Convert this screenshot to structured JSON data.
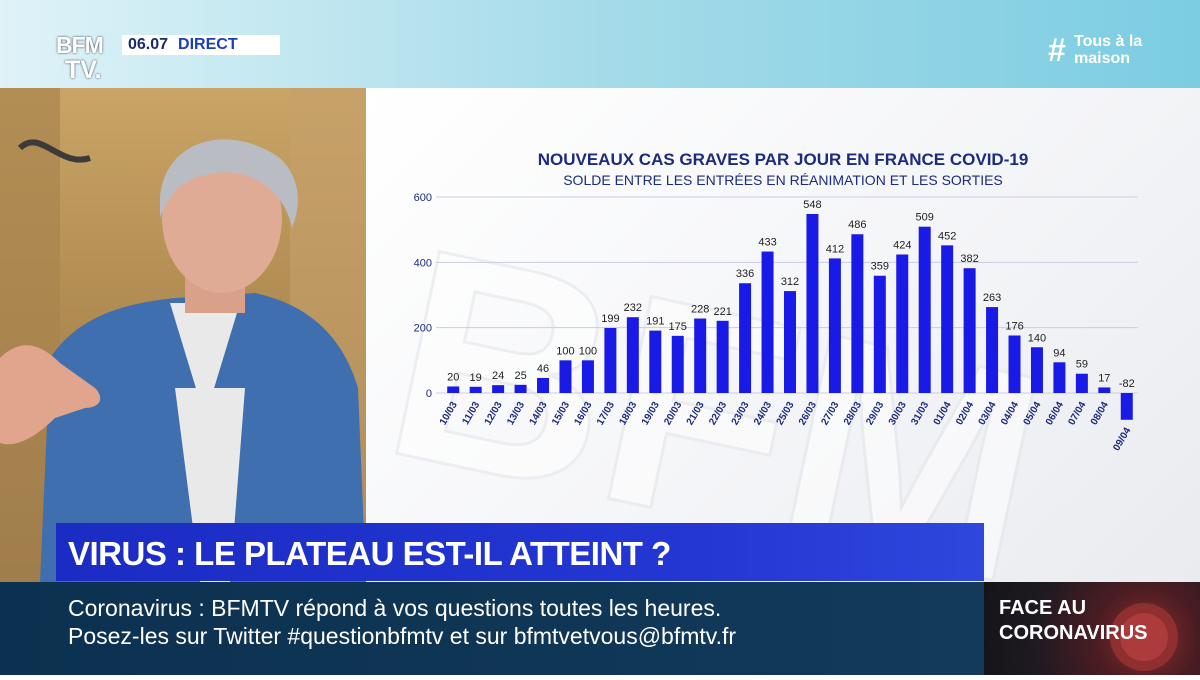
{
  "channel": {
    "logo_line1": "BFM",
    "logo_line2": "TV.",
    "time": "06.07",
    "live": "DIRECT",
    "hashtag_symbol": "#",
    "hashtag_line1": "Tous à la",
    "hashtag_line2": "maison"
  },
  "headline": "VIRUS : LE PLATEAU EST-IL ATTEINT ?",
  "ticker": {
    "label": "Coronavirus :",
    "line1": "BFMTV répond à vos questions toutes les heures.",
    "line2": "Posez-les sur Twitter #questionbfmtv et sur bfmtvetvous@bfmtv.fr"
  },
  "side_panel": {
    "line1": "FACE AU",
    "line2": "CORONAVIRUS"
  },
  "colors": {
    "bar": "#1a1ae6",
    "headline_bg": "#2233cc",
    "ticker_bg": "#0f3556",
    "title": "#1c2a80"
  },
  "chart_data": {
    "type": "bar",
    "title": "NOUVEAUX CAS GRAVES PAR JOUR EN FRANCE COVID-19",
    "subtitle": "SOLDE ENTRE LES ENTRÉES EN RÉANIMATION ET LES SORTIES",
    "categories": [
      "10/03",
      "11/03",
      "12/03",
      "13/03",
      "14/03",
      "15/03",
      "16/03",
      "17/03",
      "18/03",
      "19/03",
      "20/03",
      "21/03",
      "22/03",
      "23/03",
      "24/03",
      "25/03",
      "26/03",
      "27/03",
      "28/03",
      "29/03",
      "30/03",
      "31/03",
      "01/04",
      "02/04",
      "03/04",
      "04/04",
      "05/04",
      "06/04",
      "07/04",
      "08/04",
      "09/04"
    ],
    "values": [
      20,
      19,
      24,
      25,
      46,
      100,
      100,
      199,
      232,
      191,
      175,
      228,
      221,
      336,
      433,
      312,
      548,
      412,
      486,
      359,
      424,
      509,
      452,
      382,
      263,
      176,
      140,
      94,
      59,
      17,
      -82
    ],
    "data_labels": [
      "20",
      "19",
      "24",
      "25",
      "46",
      "100",
      "100",
      "199",
      "232",
      "191",
      "175",
      "228",
      "221",
      "336",
      "433",
      "312",
      "548",
      "412",
      "486",
      "359",
      "424",
      "509",
      "452",
      "382",
      "263",
      "176",
      "140",
      "94",
      "59",
      "17",
      "-82"
    ],
    "yticks": [
      0,
      200,
      400,
      600
    ],
    "ytick_labels": [
      "0",
      "200",
      "400",
      "600"
    ],
    "ylim": [
      -100,
      600
    ],
    "grid": true,
    "legend": "none"
  }
}
